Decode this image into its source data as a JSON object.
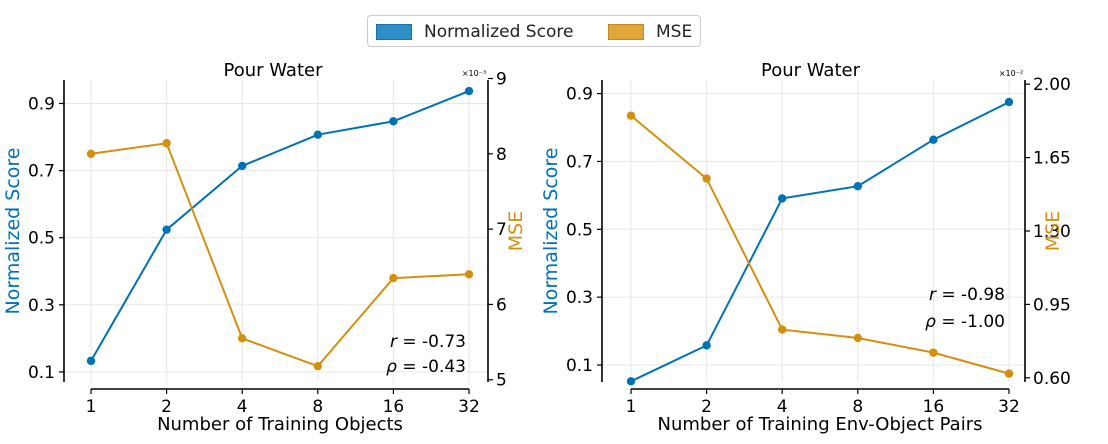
{
  "legend": {
    "items": [
      {
        "label": "Normalized Score",
        "color": "#2f8fc7"
      },
      {
        "label": "MSE",
        "color": "#e0a73a"
      }
    ]
  },
  "colors": {
    "score": "#0072b2",
    "mse": "#d38f10",
    "grid": "#e6e6e6",
    "axis": "#000000"
  },
  "chart_data": [
    {
      "type": "line",
      "title": "Pour Water",
      "xlabel": "Number of Training Objects",
      "ylabel_left": "Normalized Score",
      "ylabel_right": "MSE",
      "categories": [
        "1",
        "2",
        "4",
        "8",
        "16",
        "32"
      ],
      "left_ylim": [
        0.07,
        0.97
      ],
      "left_ticks": [
        0.1,
        0.3,
        0.5,
        0.7,
        0.9
      ],
      "left_tick_labels": [
        "0.1",
        "0.3",
        "0.5",
        "0.7",
        "0.9"
      ],
      "right_ylim": [
        4.97,
        8.98
      ],
      "right_ticks": [
        5,
        6,
        7,
        8,
        9
      ],
      "right_tick_labels": [
        "5",
        "6",
        "7",
        "8",
        "9"
      ],
      "right_multiplier": "×10⁻³",
      "grid": true,
      "series": [
        {
          "name": "Normalized Score",
          "axis": "left",
          "values": [
            0.133,
            0.524,
            0.714,
            0.807,
            0.847,
            0.937
          ]
        },
        {
          "name": "MSE",
          "axis": "right",
          "values": [
            8.0,
            8.14,
            5.55,
            5.18,
            6.35,
            6.4
          ]
        }
      ],
      "annotations": {
        "r": {
          "symbol": "r",
          "text": "= -0.73"
        },
        "rho": {
          "symbol": "ρ",
          "text": "= -0.43"
        }
      }
    },
    {
      "type": "line",
      "title": "Pour Water",
      "xlabel": "Number of Training Env-Object Pairs",
      "ylabel_left": "Normalized Score",
      "ylabel_right": "MSE",
      "categories": [
        "1",
        "2",
        "4",
        "8",
        "16",
        "32"
      ],
      "left_ylim": [
        0.05,
        0.94
      ],
      "left_ticks": [
        0.1,
        0.3,
        0.5,
        0.7,
        0.9
      ],
      "left_tick_labels": [
        "0.1",
        "0.3",
        "0.5",
        "0.7",
        "0.9"
      ],
      "right_ylim": [
        0.58,
        2.02
      ],
      "right_ticks": [
        0.6,
        0.95,
        1.3,
        1.65,
        2.0
      ],
      "right_tick_labels": [
        "0.60",
        "0.95",
        "1.30",
        "1.65",
        "2.00"
      ],
      "right_multiplier": "×10⁻²",
      "grid": true,
      "series": [
        {
          "name": "Normalized Score",
          "axis": "left",
          "values": [
            0.052,
            0.158,
            0.591,
            0.627,
            0.764,
            0.875
          ]
        },
        {
          "name": "MSE",
          "axis": "right",
          "values": [
            1.85,
            1.55,
            0.83,
            0.79,
            0.72,
            0.62
          ]
        }
      ],
      "annotations": {
        "r": {
          "symbol": "r",
          "text": "= -0.98"
        },
        "rho": {
          "symbol": "ρ",
          "text": "= -1.00"
        }
      }
    }
  ]
}
